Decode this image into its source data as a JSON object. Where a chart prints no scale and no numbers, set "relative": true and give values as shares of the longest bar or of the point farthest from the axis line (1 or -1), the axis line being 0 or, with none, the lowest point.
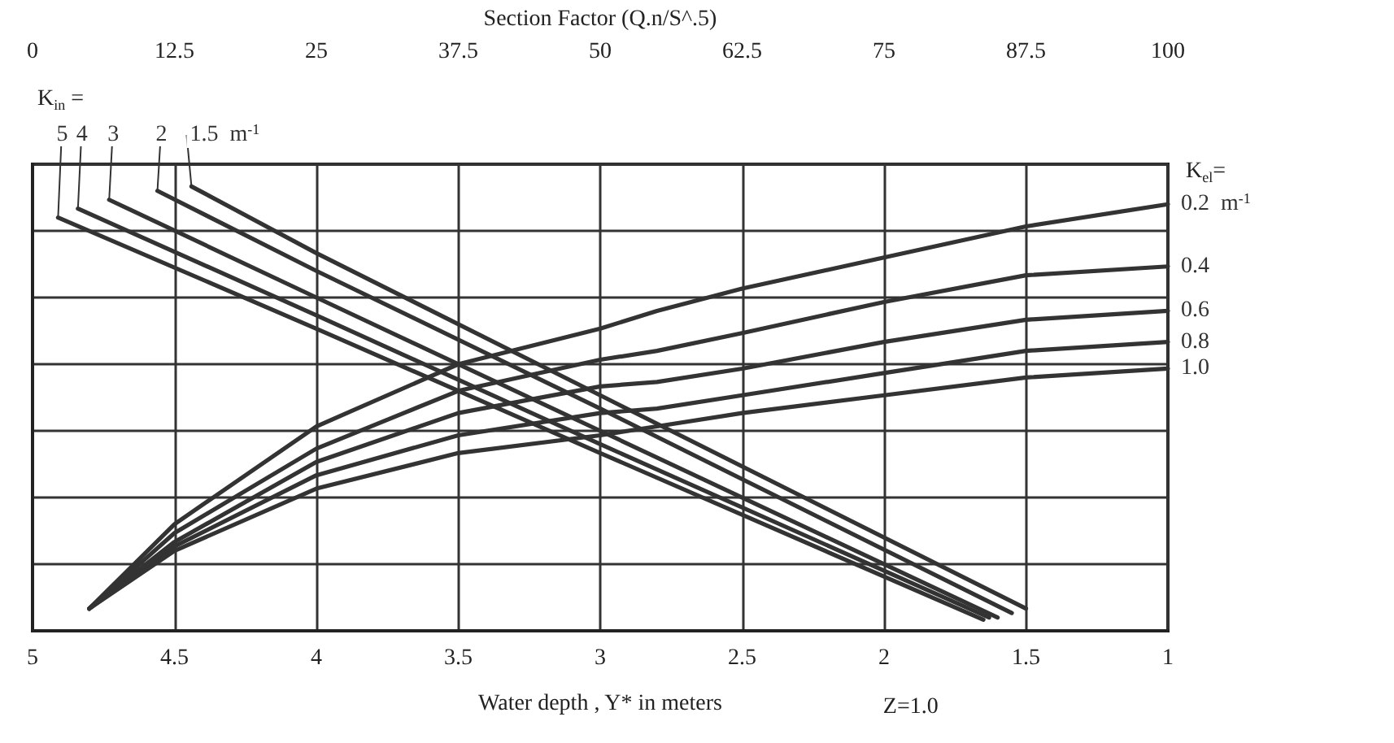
{
  "chart_data": {
    "type": "line",
    "relative": true,
    "x2label": "Section Factor (Q.n/S^.5)",
    "xlabel": "Water depth , Y* in meters",
    "xlim": [
      5,
      1
    ],
    "xticks": [
      5,
      4.5,
      4,
      3.5,
      3,
      2.5,
      2,
      1.5,
      1
    ],
    "x2lim": [
      0,
      100
    ],
    "x2ticks": [
      0,
      12.5,
      25,
      37.5,
      50,
      62.5,
      75,
      87.5,
      100
    ],
    "grid": true,
    "annotations": [
      "K$_{in}$ =",
      "K$_{el}$=",
      "Z=1.0"
    ],
    "series": [
      {
        "name": "1.5  m$^{-1}$",
        "color": "#333333",
        "x": [
          4.44,
          4,
          3,
          1.5
        ],
        "values": [
          1.0,
          0.85,
          0.53,
          0.05
        ]
      },
      {
        "name": "2",
        "color": "#333333",
        "x": [
          4.56,
          4,
          3,
          1.55
        ],
        "values": [
          0.99,
          0.81,
          0.5,
          0.04
        ]
      },
      {
        "name": "3",
        "color": "#333333",
        "x": [
          4.73,
          4,
          3,
          1.6
        ],
        "values": [
          0.97,
          0.75,
          0.45,
          0.03
        ]
      },
      {
        "name": "4",
        "color": "#333333",
        "x": [
          4.84,
          4,
          3,
          1.63
        ],
        "values": [
          0.95,
          0.71,
          0.42,
          0.03
        ]
      },
      {
        "name": "5",
        "color": "#333333",
        "x": [
          4.91,
          4,
          3,
          1.65
        ],
        "values": [
          0.93,
          0.68,
          0.4,
          0.025
        ]
      },
      {
        "name": "0.2  m$^{-1}$",
        "color": "#333333",
        "x": [
          4.8,
          4.5,
          4,
          3.5,
          3,
          2.8,
          2.5,
          2,
          1.5,
          1
        ],
        "values": [
          0.05,
          0.24,
          0.46,
          0.6,
          0.68,
          0.72,
          0.77,
          0.84,
          0.91,
          0.96
        ]
      },
      {
        "name": "0.4",
        "color": "#333333",
        "x": [
          4.8,
          4.5,
          4,
          3.5,
          3,
          2.8,
          2.5,
          2,
          1.5,
          1
        ],
        "values": [
          0.05,
          0.22,
          0.41,
          0.54,
          0.61,
          0.63,
          0.67,
          0.74,
          0.8,
          0.82
        ]
      },
      {
        "name": "0.6",
        "color": "#333333",
        "x": [
          4.8,
          4.5,
          4,
          3.5,
          3,
          2.8,
          2.5,
          2,
          1.5,
          1
        ],
        "values": [
          0.05,
          0.2,
          0.38,
          0.49,
          0.55,
          0.56,
          0.59,
          0.65,
          0.7,
          0.72
        ]
      },
      {
        "name": "0.8",
        "color": "#333333",
        "x": [
          4.8,
          4.5,
          4,
          3.5,
          3,
          2.8,
          2.5,
          2,
          1.5,
          1
        ],
        "values": [
          0.05,
          0.19,
          0.35,
          0.44,
          0.49,
          0.5,
          0.53,
          0.58,
          0.63,
          0.65
        ]
      },
      {
        "name": "1.0",
        "color": "#333333",
        "x": [
          4.8,
          4.5,
          4,
          3.5,
          3,
          2.8,
          2.5,
          2,
          1.5,
          1
        ],
        "values": [
          0.05,
          0.18,
          0.32,
          0.4,
          0.44,
          0.46,
          0.49,
          0.53,
          0.57,
          0.59
        ]
      }
    ]
  }
}
